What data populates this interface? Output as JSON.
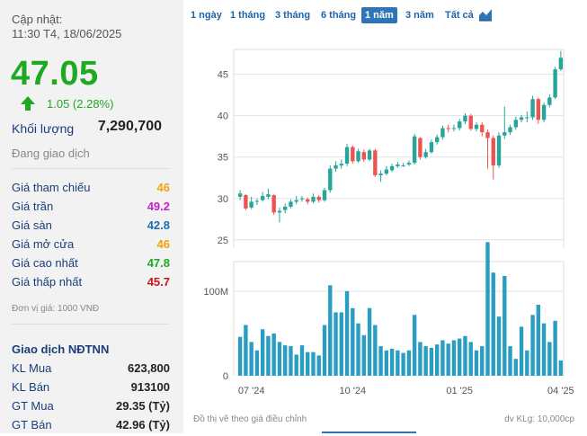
{
  "stock": {
    "updated_label": "Cập nhật:",
    "updated_time": "11:30 T4, 18/06/2025",
    "price": "47.05",
    "change": "1.05 (2.28%)",
    "volume_label": "Khối lượng",
    "volume_value": "7,290,700",
    "status": "Đang giao dịch"
  },
  "price_stats": [
    {
      "label": "Giá tham chiếu",
      "value": "46",
      "color": "#f0a30a"
    },
    {
      "label": "Giá trần",
      "value": "49.2",
      "color": "#c51fc5"
    },
    {
      "label": "Giá sàn",
      "value": "42.8",
      "color": "#1b6fb5"
    },
    {
      "label": "Giá mở cửa",
      "value": "46",
      "color": "#f0a30a"
    },
    {
      "label": "Giá cao nhất",
      "value": "47.8",
      "color": "#1fa823"
    },
    {
      "label": "Giá thấp nhất",
      "value": "45.7",
      "color": "#c8141e"
    }
  ],
  "unit_note": "Đơn vị giá: 1000 VNĐ",
  "foreign": {
    "title": "Giao dịch NĐTNN",
    "rows": [
      {
        "label": "KL Mua",
        "value": "623,800"
      },
      {
        "label": "KL Bán",
        "value": "913100"
      },
      {
        "label": "GT Mua",
        "value": "29.35 (Tỷ)"
      },
      {
        "label": "GT Bán",
        "value": "42.96 (Tỷ)"
      }
    ]
  },
  "range_tabs": [
    {
      "label": "1 ngày",
      "active": false
    },
    {
      "label": "1 tháng",
      "active": false
    },
    {
      "label": "3 tháng",
      "active": false
    },
    {
      "label": "6 tháng",
      "active": false
    },
    {
      "label": "1 năm",
      "active": true
    },
    {
      "label": "3 năm",
      "active": false
    },
    {
      "label": "Tất cả",
      "active": false
    }
  ],
  "chart_icon": "area-chart-icon",
  "chart_footer_left": "Đồ thị vẽ theo giá điều chỉnh",
  "chart_footer_right": "dv KLg: 10,000cp",
  "colors": {
    "up": "#26a69a",
    "down": "#ef5350",
    "volume": "#2a9dc2",
    "price_up": "#1fa823"
  },
  "chart_data": {
    "type": "candlestick",
    "x_ticks": [
      "07 '24",
      "10 '24",
      "01 '25",
      "04 '25"
    ],
    "x_tick_index": [
      2,
      20,
      39,
      57
    ],
    "price_axis": {
      "ticks": [
        25,
        30,
        35,
        40,
        45
      ],
      "ylim": [
        24,
        48
      ]
    },
    "volume_axis": {
      "ticks": [
        {
          "value": 0,
          "label": "0"
        },
        {
          "value": 100,
          "label": "100M"
        }
      ],
      "ylim": [
        0,
        135
      ]
    },
    "candles": [
      {
        "o": 30.2,
        "c": 30.6,
        "h": 31.0,
        "l": 29.8,
        "v": 46
      },
      {
        "o": 30.4,
        "c": 28.8,
        "h": 30.5,
        "l": 28.6,
        "v": 60
      },
      {
        "o": 28.9,
        "c": 29.6,
        "h": 30.2,
        "l": 28.7,
        "v": 40
      },
      {
        "o": 29.6,
        "c": 29.7,
        "h": 30.0,
        "l": 29.2,
        "v": 30
      },
      {
        "o": 29.8,
        "c": 30.3,
        "h": 30.8,
        "l": 29.6,
        "v": 55
      },
      {
        "o": 30.2,
        "c": 30.5,
        "h": 31.2,
        "l": 29.9,
        "v": 47
      },
      {
        "o": 30.4,
        "c": 28.3,
        "h": 30.5,
        "l": 28.0,
        "v": 50
      },
      {
        "o": 28.3,
        "c": 28.5,
        "h": 28.9,
        "l": 27.1,
        "v": 40
      },
      {
        "o": 28.6,
        "c": 29.0,
        "h": 29.4,
        "l": 28.2,
        "v": 36
      },
      {
        "o": 29.0,
        "c": 29.6,
        "h": 29.9,
        "l": 28.8,
        "v": 35
      },
      {
        "o": 29.6,
        "c": 29.8,
        "h": 30.3,
        "l": 29.3,
        "v": 25
      },
      {
        "o": 29.9,
        "c": 30.0,
        "h": 30.3,
        "l": 29.6,
        "v": 36
      },
      {
        "o": 29.9,
        "c": 29.6,
        "h": 30.1,
        "l": 29.3,
        "v": 28
      },
      {
        "o": 29.6,
        "c": 30.2,
        "h": 30.6,
        "l": 29.4,
        "v": 28
      },
      {
        "o": 30.2,
        "c": 29.8,
        "h": 30.4,
        "l": 29.5,
        "v": 24
      },
      {
        "o": 29.8,
        "c": 31.0,
        "h": 31.3,
        "l": 29.6,
        "v": 60
      },
      {
        "o": 31.0,
        "c": 33.6,
        "h": 34.0,
        "l": 30.7,
        "v": 107
      },
      {
        "o": 33.6,
        "c": 34.0,
        "h": 34.5,
        "l": 33.2,
        "v": 75
      },
      {
        "o": 34.0,
        "c": 34.2,
        "h": 34.7,
        "l": 33.6,
        "v": 75
      },
      {
        "o": 34.2,
        "c": 36.2,
        "h": 36.6,
        "l": 33.9,
        "v": 100
      },
      {
        "o": 36.2,
        "c": 34.5,
        "h": 36.4,
        "l": 34.2,
        "v": 80
      },
      {
        "o": 34.5,
        "c": 35.7,
        "h": 36.0,
        "l": 34.3,
        "v": 62
      },
      {
        "o": 35.6,
        "c": 34.7,
        "h": 35.9,
        "l": 34.4,
        "v": 48
      },
      {
        "o": 34.7,
        "c": 35.8,
        "h": 36.0,
        "l": 34.5,
        "v": 80
      },
      {
        "o": 35.8,
        "c": 32.8,
        "h": 36.0,
        "l": 32.6,
        "v": 60
      },
      {
        "o": 32.8,
        "c": 33.0,
        "h": 33.4,
        "l": 32.0,
        "v": 35
      },
      {
        "o": 33.0,
        "c": 33.5,
        "h": 33.9,
        "l": 32.8,
        "v": 30
      },
      {
        "o": 33.4,
        "c": 33.9,
        "h": 34.2,
        "l": 33.2,
        "v": 32
      },
      {
        "o": 33.9,
        "c": 34.1,
        "h": 34.4,
        "l": 33.7,
        "v": 30
      },
      {
        "o": 34.0,
        "c": 34.0,
        "h": 34.3,
        "l": 33.8,
        "v": 27
      },
      {
        "o": 34.1,
        "c": 34.3,
        "h": 34.6,
        "l": 33.9,
        "v": 30
      },
      {
        "o": 34.3,
        "c": 37.5,
        "h": 37.8,
        "l": 34.1,
        "v": 72
      },
      {
        "o": 37.3,
        "c": 35.0,
        "h": 37.4,
        "l": 34.7,
        "v": 40
      },
      {
        "o": 35.0,
        "c": 35.6,
        "h": 36.0,
        "l": 34.8,
        "v": 35
      },
      {
        "o": 35.6,
        "c": 36.8,
        "h": 37.1,
        "l": 35.4,
        "v": 33
      },
      {
        "o": 36.8,
        "c": 37.4,
        "h": 37.7,
        "l": 36.5,
        "v": 37
      },
      {
        "o": 37.4,
        "c": 38.5,
        "h": 38.8,
        "l": 37.1,
        "v": 42
      },
      {
        "o": 38.5,
        "c": 38.4,
        "h": 38.9,
        "l": 38.0,
        "v": 38
      },
      {
        "o": 38.4,
        "c": 38.5,
        "h": 38.9,
        "l": 38.1,
        "v": 42
      },
      {
        "o": 38.5,
        "c": 39.3,
        "h": 39.6,
        "l": 38.2,
        "v": 44
      },
      {
        "o": 39.3,
        "c": 40.0,
        "h": 40.3,
        "l": 39.0,
        "v": 47
      },
      {
        "o": 40.0,
        "c": 38.4,
        "h": 40.2,
        "l": 38.2,
        "v": 40
      },
      {
        "o": 38.4,
        "c": 38.9,
        "h": 39.2,
        "l": 38.1,
        "v": 30
      },
      {
        "o": 38.9,
        "c": 38.0,
        "h": 39.2,
        "l": 37.5,
        "v": 35
      },
      {
        "o": 38.0,
        "c": 37.3,
        "h": 38.3,
        "l": 33.6,
        "v": 158
      },
      {
        "o": 37.3,
        "c": 34.0,
        "h": 37.6,
        "l": 32.3,
        "v": 122
      },
      {
        "o": 34.0,
        "c": 37.6,
        "h": 38.0,
        "l": 33.7,
        "v": 70
      },
      {
        "o": 37.6,
        "c": 38.0,
        "h": 41.1,
        "l": 37.2,
        "v": 118
      },
      {
        "o": 38.0,
        "c": 38.6,
        "h": 38.9,
        "l": 37.7,
        "v": 35
      },
      {
        "o": 38.6,
        "c": 39.5,
        "h": 39.9,
        "l": 38.3,
        "v": 20
      },
      {
        "o": 39.5,
        "c": 39.8,
        "h": 40.1,
        "l": 39.2,
        "v": 58
      },
      {
        "o": 39.8,
        "c": 39.8,
        "h": 40.5,
        "l": 39.2,
        "v": 30
      },
      {
        "o": 39.8,
        "c": 42.0,
        "h": 42.4,
        "l": 39.5,
        "v": 72
      },
      {
        "o": 42.0,
        "c": 39.5,
        "h": 42.2,
        "l": 39.0,
        "v": 84
      },
      {
        "o": 39.5,
        "c": 41.3,
        "h": 41.6,
        "l": 39.2,
        "v": 62
      },
      {
        "o": 41.3,
        "c": 42.2,
        "h": 42.6,
        "l": 41.0,
        "v": 40
      },
      {
        "o": 42.2,
        "c": 45.6,
        "h": 45.9,
        "l": 42.0,
        "v": 65
      },
      {
        "o": 45.6,
        "c": 47.0,
        "h": 47.8,
        "l": 45.4,
        "v": 18
      }
    ]
  }
}
